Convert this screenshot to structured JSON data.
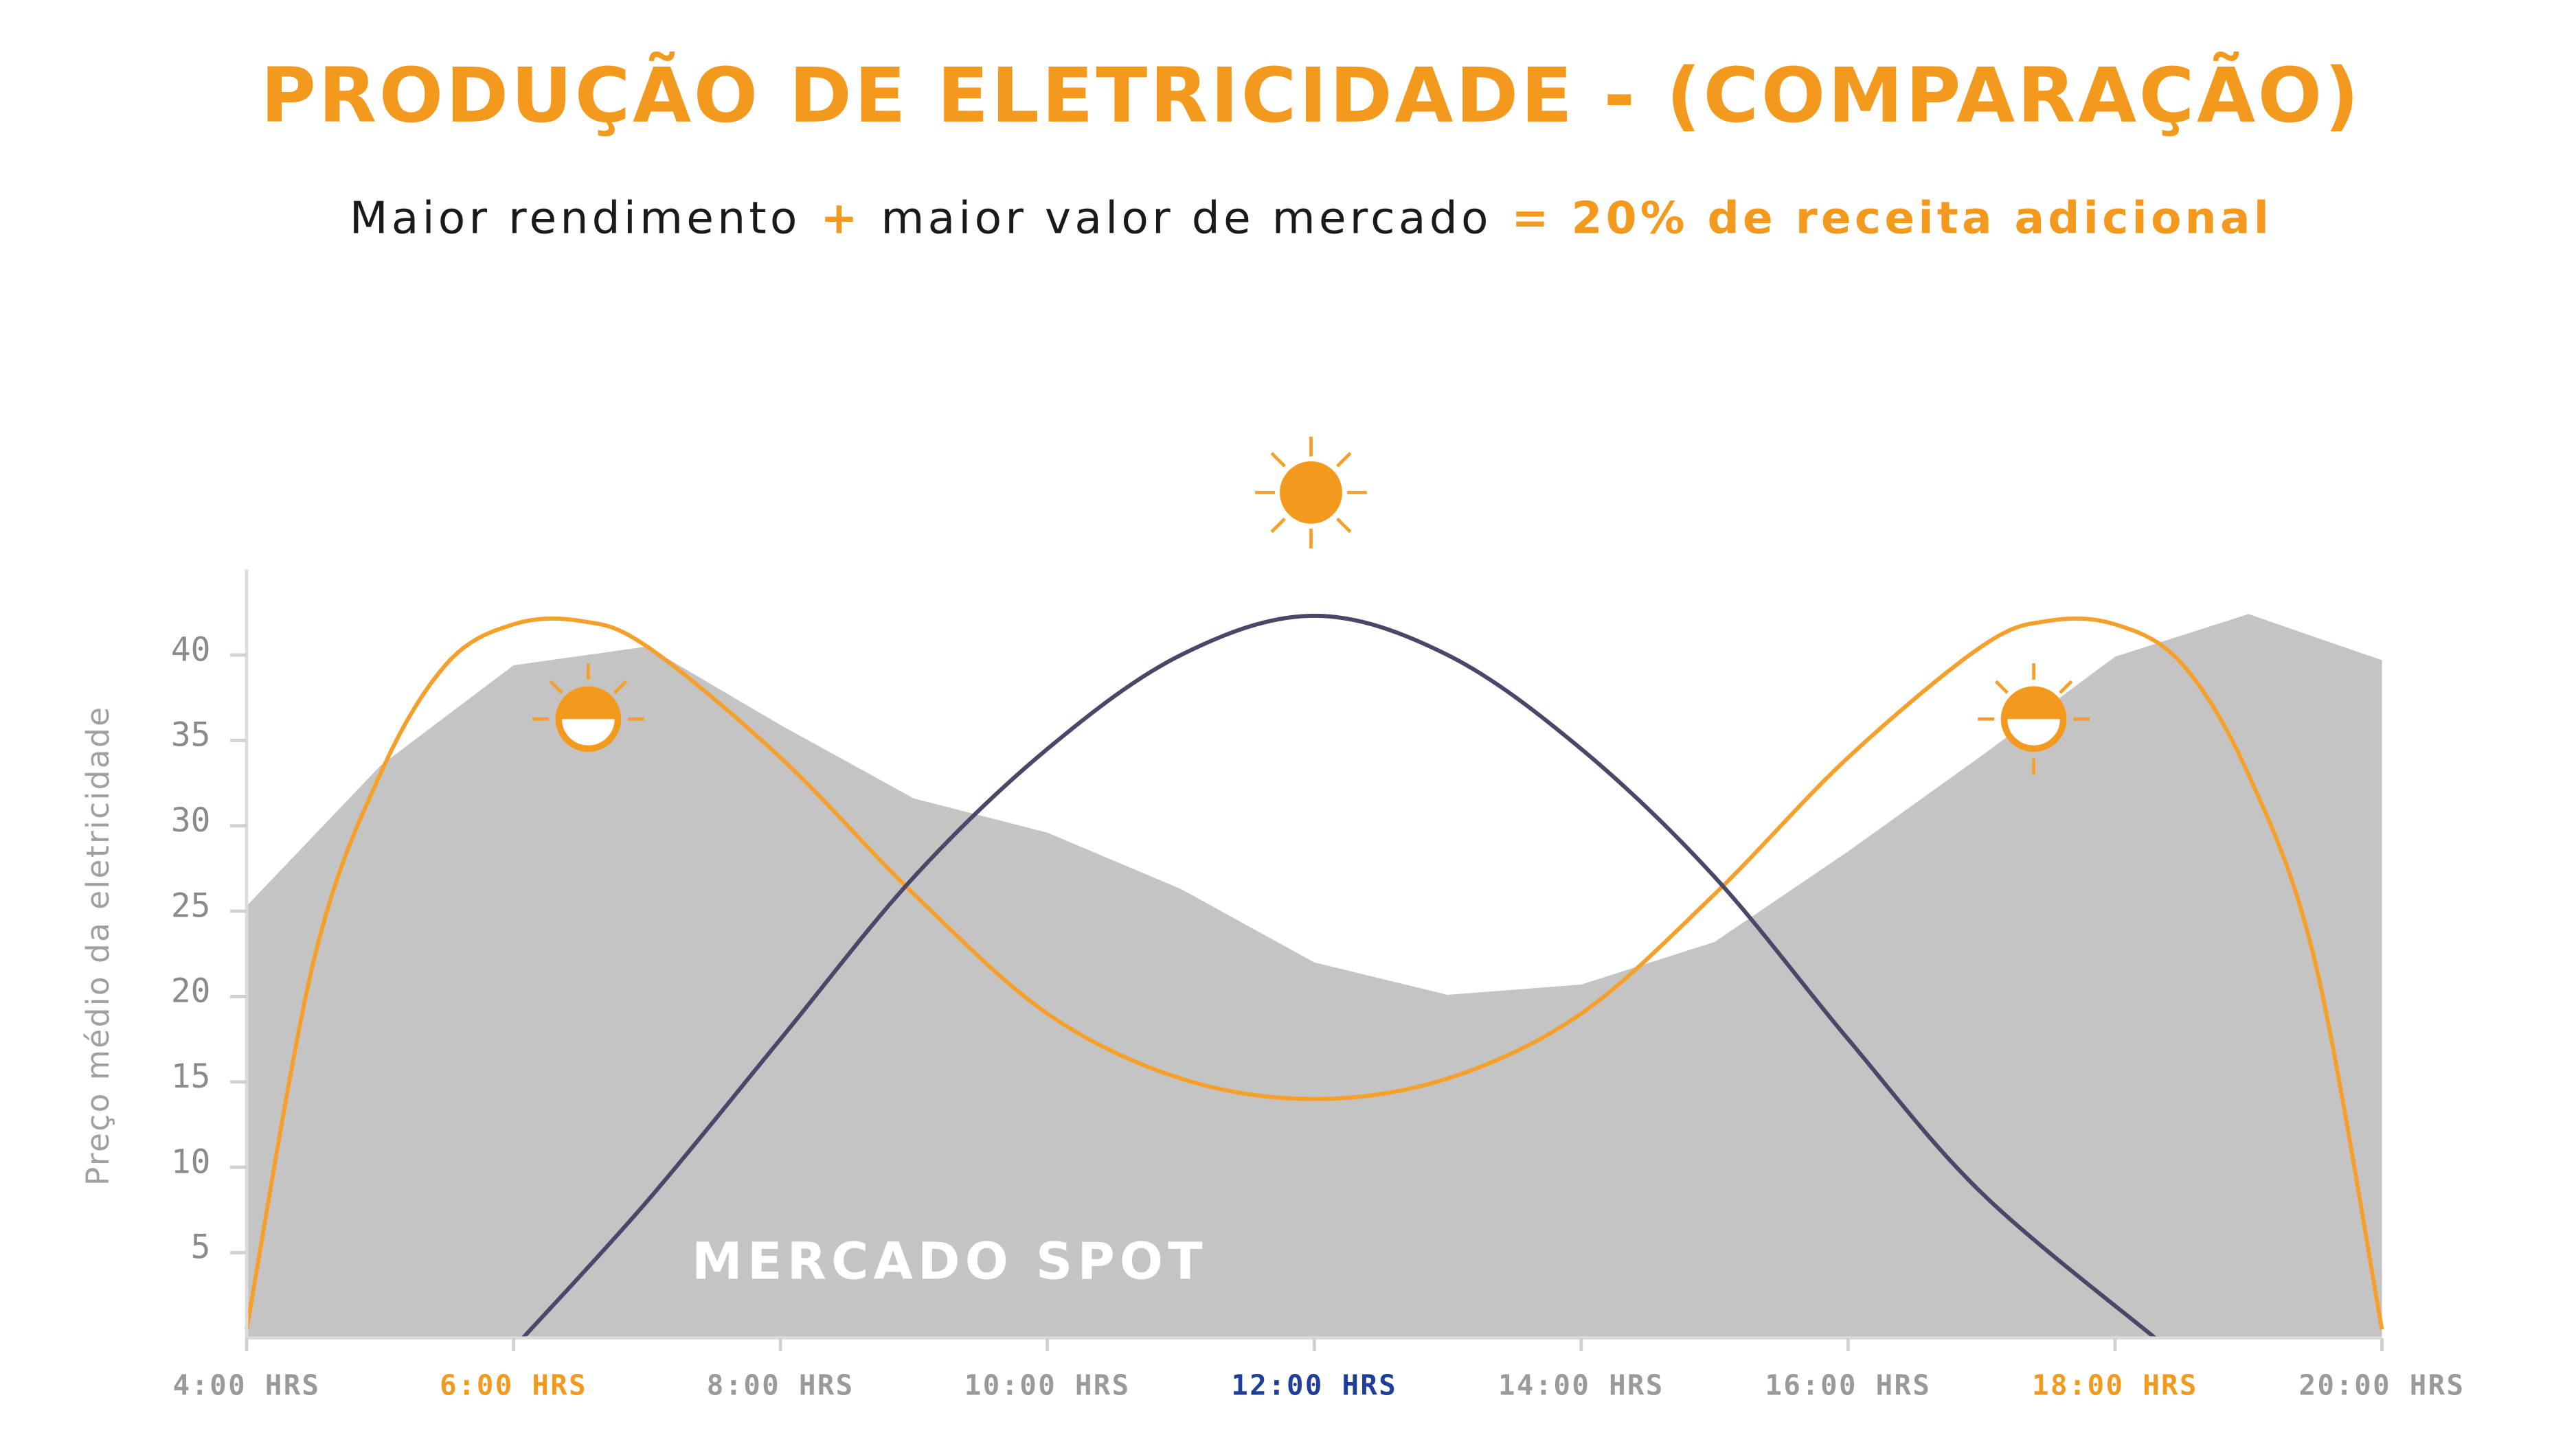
{
  "chart_data": {
    "type": "area-lines",
    "title": "PRODUÇÃO DE ELETRICIDADE - (COMPARAÇÃO)",
    "title_color": "#f39a1e",
    "subtitle_parts": [
      {
        "text": "Maior rendimento",
        "color": "#1a1a1a"
      },
      {
        "text": "+",
        "color": "#f39a1e"
      },
      {
        "text": "maior valor de mercado",
        "color": "#1a1a1a"
      },
      {
        "text": "= 20% de receita adicional",
        "color": "#f39a1e"
      }
    ],
    "y_label": "Preço médio da eletricidade",
    "annotation": "MERCADO SPOT",
    "xlim": [
      4,
      20
    ],
    "ylim": [
      0,
      45
    ],
    "yticks": [
      5,
      10,
      15,
      20,
      25,
      30,
      35,
      40
    ],
    "xticks": [
      {
        "value": 4,
        "label": "4:00 HRS"
      },
      {
        "value": 6,
        "label": "6:00 HRS"
      },
      {
        "value": 8,
        "label": "8:00 HRS"
      },
      {
        "value": 10,
        "label": "10:00 HRS"
      },
      {
        "value": 12,
        "label": "12:00 HRS"
      },
      {
        "value": 14,
        "label": "14:00 HRS"
      },
      {
        "value": 16,
        "label": "16:00 HRS"
      },
      {
        "value": 18,
        "label": "18:00 HRS"
      },
      {
        "value": 20,
        "label": "20:00 HRS"
      }
    ],
    "xtick_colors": [
      "#9a9a9a",
      "#f39a1e",
      "#9a9a9a",
      "#9a9a9a",
      "#1f3f9a",
      "#9a9a9a",
      "#9a9a9a",
      "#f39a1e",
      "#9a9a9a"
    ],
    "series": [
      {
        "kind": "area",
        "color": "#c4c4c4",
        "x": [
          4,
          5,
          6,
          7,
          8,
          9,
          10,
          11,
          12,
          13,
          14,
          15,
          16,
          17,
          18,
          19,
          20
        ],
        "values": [
          25.3,
          33.5,
          39.4,
          40.5,
          35.9,
          31.6,
          29.6,
          26.3,
          22.0,
          20.1,
          20.7,
          23.2,
          28.5,
          34.1,
          39.9,
          42.4,
          39.7
        ]
      },
      {
        "kind": "line",
        "color": "#f5a02a",
        "x": [
          4,
          4.5,
          5,
          5.5,
          6,
          6.5,
          7,
          8,
          9,
          10,
          11,
          12,
          13,
          14,
          15,
          16,
          17,
          17.5,
          18,
          18.5,
          19,
          19.5,
          20
        ],
        "values": [
          0.5,
          22,
          33,
          39.5,
          41.8,
          42,
          40.5,
          34,
          26,
          19,
          15.2,
          14,
          15.2,
          19,
          26,
          34,
          40.5,
          42,
          41.8,
          39.5,
          33,
          22,
          0.5
        ]
      },
      {
        "kind": "line",
        "color": "#4a4868",
        "x": [
          6.07,
          7,
          8,
          9,
          10,
          11,
          12,
          13,
          14,
          15,
          16,
          17,
          18.3
        ],
        "values": [
          0,
          8,
          17.5,
          27,
          34.5,
          40,
          42.3,
          40,
          34.5,
          27,
          17.5,
          8.5,
          0
        ]
      }
    ]
  }
}
